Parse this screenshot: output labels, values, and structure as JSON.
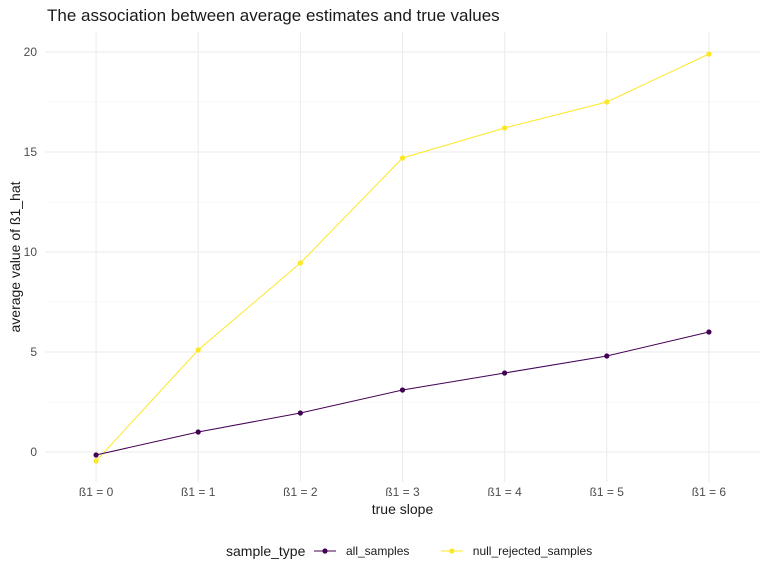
{
  "chart_data": {
    "type": "line",
    "title": "The association between average estimates and true values",
    "xlabel": "true slope",
    "ylabel": "average value of ß1_hat",
    "categories": [
      "ß1 = 0",
      "ß1 = 1",
      "ß1 = 2",
      "ß1 = 3",
      "ß1 = 4",
      "ß1 = 5",
      "ß1 = 6"
    ],
    "ylim": [
      -1.5,
      21
    ],
    "yticks": [
      0,
      5,
      10,
      15,
      20
    ],
    "grid": true,
    "legend_title": "sample_type",
    "legend_position": "bottom",
    "series": [
      {
        "name": "all_samples",
        "color": "#440154",
        "values": [
          -0.15,
          1.0,
          1.95,
          3.1,
          3.95,
          4.8,
          6.0
        ]
      },
      {
        "name": "null_rejected_samples",
        "color": "#FDE725",
        "values": [
          -0.45,
          5.1,
          9.45,
          14.7,
          16.2,
          17.5,
          19.9
        ]
      }
    ]
  }
}
